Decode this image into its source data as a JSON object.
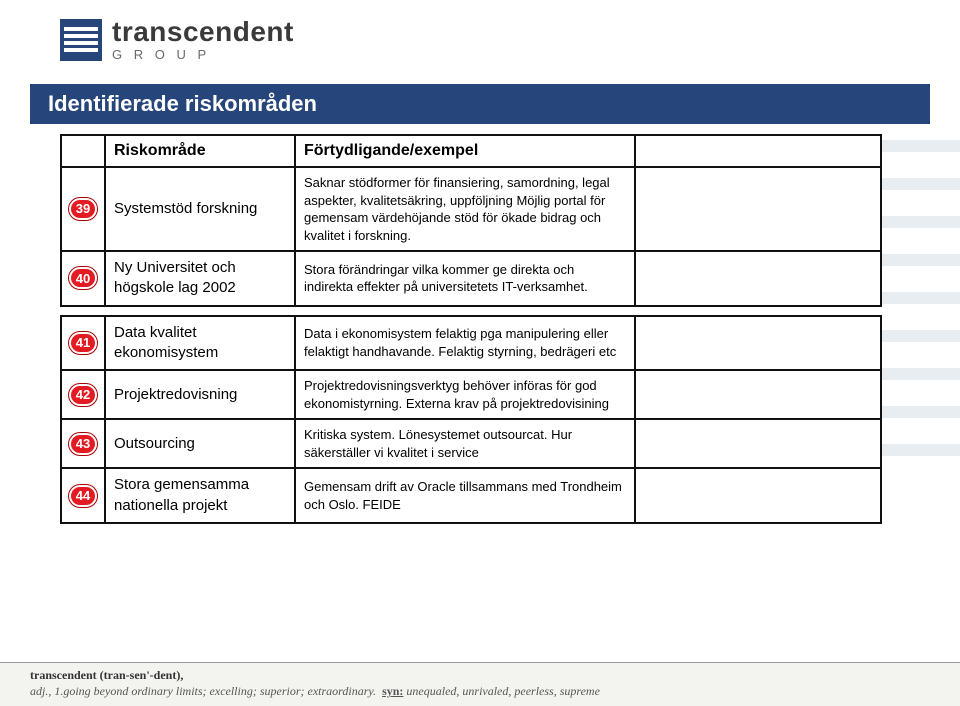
{
  "logo": {
    "main": "transcendent",
    "sub": "G R O U P"
  },
  "title": "Identifierade riskområden",
  "headers": {
    "risk": "Riskområde",
    "desc": "Förtydligande/exempel"
  },
  "group1": [
    {
      "id": "39",
      "risk": "Systemstöd forskning",
      "desc": "Saknar stödformer för finansiering, samordning, legal aspekter, kvalitetsäkring, uppföljning Möjlig portal för gemensam värdehöjande stöd för ökade bidrag och kvalitet i forskning."
    },
    {
      "id": "40",
      "risk": "Ny Universitet och högskole lag 2002",
      "desc": "Stora förändringar vilka kommer ge direkta och indirekta effekter på universitetets IT-verksamhet."
    }
  ],
  "group2": [
    {
      "id": "41",
      "risk": "Data kvalitet ekonomisystem",
      "desc": "Data i ekonomisystem felaktig pga manipulering eller felaktigt handhavande. Felaktig styrning, bedrägeri etc"
    },
    {
      "id": "42",
      "risk": "Projektredovisning",
      "desc": "Projektredovisningsverktyg behöver införas för god ekonomistyrning. Externa krav på projektredovisining"
    },
    {
      "id": "43",
      "risk": "Outsourcing",
      "desc": "Kritiska system. Lönesystemet outsourcat. Hur säkerställer vi kvalitet i service"
    },
    {
      "id": "44",
      "risk": "Stora gemensamma nationella projekt",
      "desc": "Gemensam drift av Oracle tillsammans med Trondheim och Oslo. FEIDE"
    }
  ],
  "footer": {
    "word": "transcendent (tran-sen'-dent),",
    "line1": "adj., 1.going beyond ordinary limits; excelling; superior; extraordinary.",
    "synlabel": "syn:",
    "syn": " unequaled, unrivaled, peerless, supreme"
  },
  "colors": {
    "titleBg": "#26457a",
    "badgeBg": "#e31b23",
    "border": "#111111",
    "stripe": "#e8edf2"
  }
}
